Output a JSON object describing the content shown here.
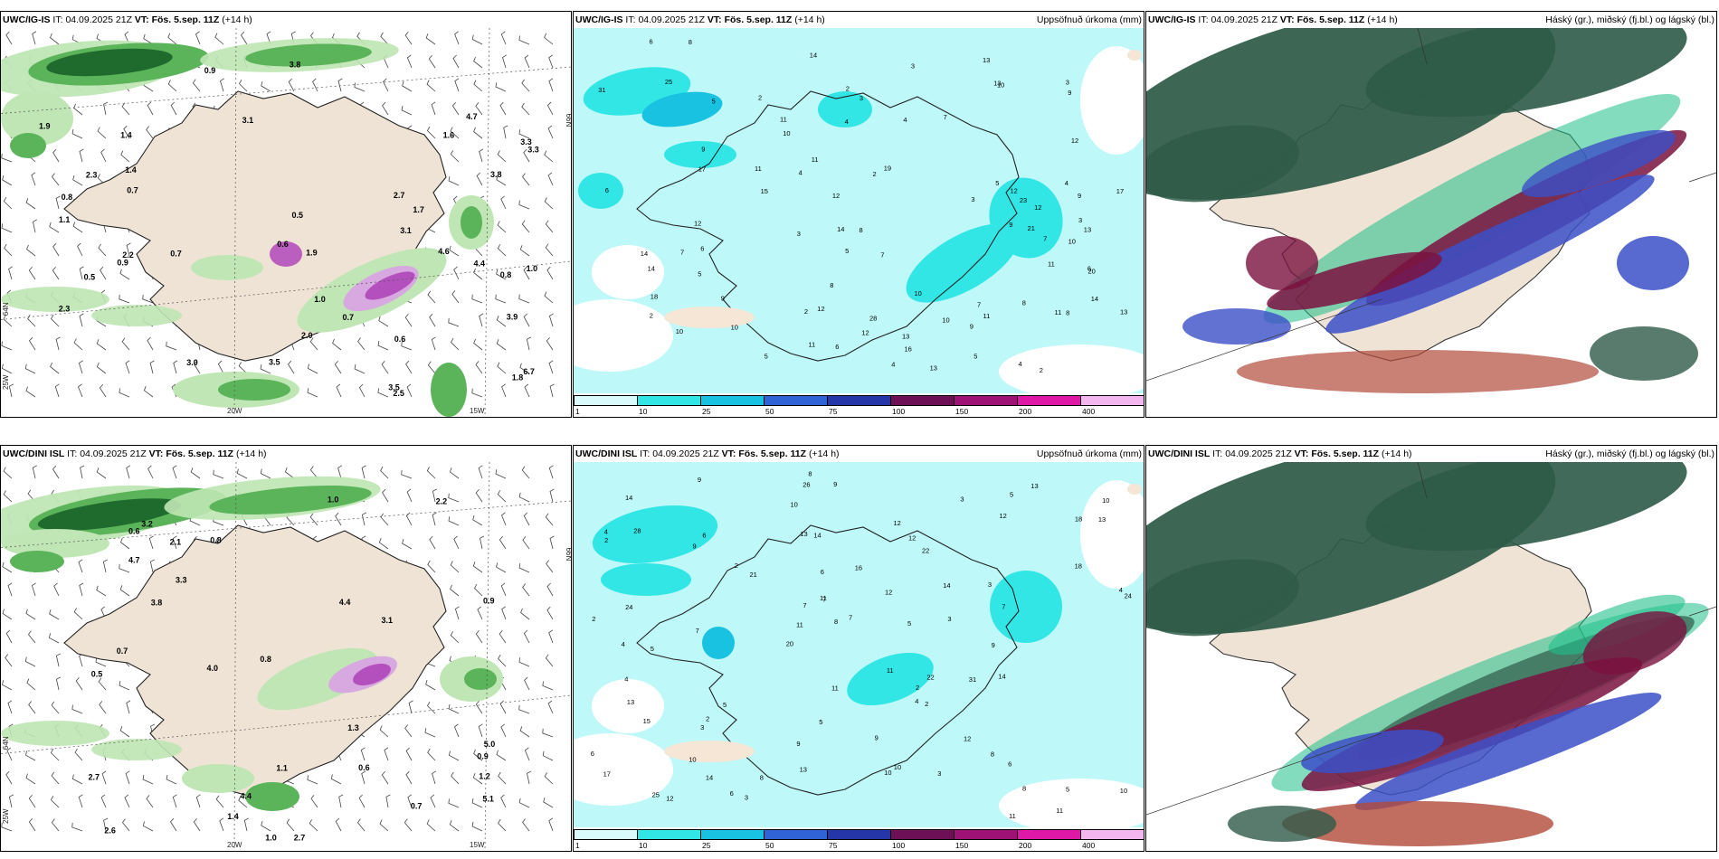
{
  "panels": [
    {
      "id": "p1",
      "model": "UWC/IG-IS",
      "it_label": "IT:",
      "it": "04.09.2025 21Z",
      "vt_label": "VT:",
      "vt": "Fös. 5.sep. 11Z",
      "lead": "(+14 h)",
      "right_title": "",
      "kind": "wind"
    },
    {
      "id": "p2",
      "model": "UWC/IG-IS",
      "it_label": "IT:",
      "it": "04.09.2025 21Z",
      "vt_label": "VT:",
      "vt": "Fös. 5.sep. 11Z",
      "lead": "(+14 h)",
      "right_title": "Uppsöfnuð úrkoma (mm)",
      "kind": "precip"
    },
    {
      "id": "p3",
      "model": "UWC/IG-IS",
      "it_label": "IT:",
      "it": "04.09.2025 21Z",
      "vt_label": "VT:",
      "vt": "Fös. 5.sep. 11Z",
      "lead": "(+14 h)",
      "right_title": "Háský (gr.), miðský (fj.bl.) og lágský (bl.)",
      "kind": "cloud"
    },
    {
      "id": "p4",
      "model": "UWC/DINI ISL",
      "it_label": "IT:",
      "it": "04.09.2025 21Z",
      "vt_label": "VT:",
      "vt": "Fös. 5.sep. 11Z",
      "lead": "(+14 h)",
      "right_title": "",
      "kind": "wind"
    },
    {
      "id": "p5",
      "model": "UWC/DINI ISL",
      "it_label": "IT:",
      "it": "04.09.2025 21Z",
      "vt_label": "VT:",
      "vt": "Fös. 5.sep. 11Z",
      "lead": "(+14 h)",
      "right_title": "Uppsöfnuð úrkoma (mm)",
      "kind": "precip"
    },
    {
      "id": "p6",
      "model": "UWC/DINI ISL",
      "it_label": "IT:",
      "it": "04.09.2025 21Z",
      "vt_label": "VT:",
      "vt": "Fös. 5.sep. 11Z",
      "lead": "(+14 h)",
      "right_title": "Háský (gr.), miðský (fj.bl.) og lágský (bl.)",
      "kind": "cloud"
    }
  ],
  "colorbar": {
    "labels": [
      "1",
      "10",
      "25",
      "50",
      "75",
      "100",
      "150",
      "200",
      "400"
    ],
    "colors": [
      "#d9fbfb",
      "#33e6e6",
      "#18c2e0",
      "#2f63d6",
      "#2536a8",
      "#6d1055",
      "#9e1276",
      "#e018a8",
      "#f3b6ee"
    ]
  },
  "axis_labels": {
    "lon_20w": "20W",
    "lon_15w": "15W",
    "lon_25w": "25W",
    "lat_64n": "64N",
    "lat_66n": "66N"
  },
  "wind_values_ig": [
    "3.9",
    "4.4",
    "4.7",
    "3.8",
    "3.1",
    "3.5",
    "3.3",
    "2.2",
    "1.9",
    "3.5",
    "3.8",
    "2.7",
    "1.7",
    "2.5",
    "2.0",
    "2.3",
    "0.5",
    "0.9",
    "1.8",
    "0.8",
    "0.6",
    "0.5",
    "0.8",
    "0.7",
    "1.4",
    "1.0",
    "1.1",
    "3.0",
    "1.0",
    "0.9",
    "0.7",
    "1.9",
    "3.3",
    "1.4",
    "3.1",
    "0.6",
    "0.7",
    "6.7",
    "4.6",
    "1.6",
    "2.3"
  ],
  "wind_values_dini": [
    "0.6",
    "0.7",
    "0.9",
    "4.4",
    "5.1",
    "4.7",
    "3.3",
    "2.2",
    "2.7",
    "4.4",
    "3.8",
    "2.6",
    "3.1",
    "1.0",
    "0.8",
    "0.9",
    "0.5",
    "0.7",
    "1.1",
    "3.2",
    "4.0",
    "1.2",
    "0.6",
    "1.3",
    "0.8",
    "1.4",
    "5.0",
    "2.1",
    "2.7",
    "1.0"
  ],
  "precip_values_ig": [
    "11",
    "28",
    "19",
    "31",
    "17",
    "18",
    "12",
    "14",
    "12",
    "9",
    "5",
    "8",
    "6",
    "13",
    "10",
    "16",
    "7",
    "11",
    "20",
    "23",
    "25",
    "21",
    "17",
    "15",
    "13",
    "10",
    "3",
    "4",
    "2"
  ],
  "precip_values_dini": [
    "5",
    "24",
    "18",
    "20",
    "22",
    "25",
    "13",
    "16",
    "15",
    "21",
    "17",
    "10",
    "14",
    "12",
    "31",
    "28",
    "26",
    "24",
    "22",
    "18",
    "11",
    "9",
    "7",
    "6",
    "3",
    "2",
    "8"
  ]
}
